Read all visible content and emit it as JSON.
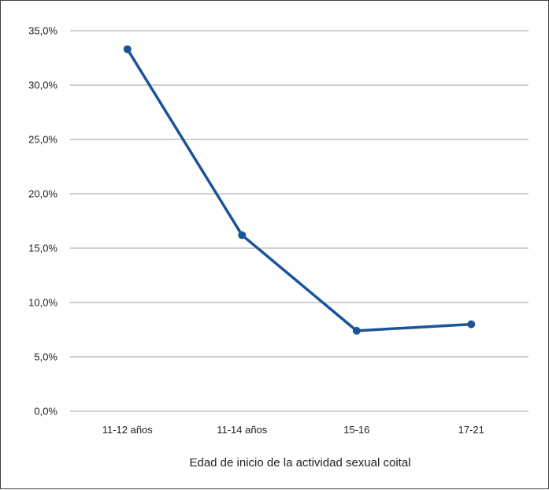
{
  "chart_data": {
    "type": "line",
    "title": "",
    "xlabel": "Edad de inicio de la actividad sexual coital",
    "ylabel": "",
    "categories": [
      "11-12 años",
      "11-14 años",
      "15-16",
      "17-21"
    ],
    "series": [
      {
        "values": [
          33.3,
          16.2,
          7.4,
          8.0
        ]
      }
    ],
    "ylim": [
      0,
      35
    ],
    "yticks": [
      0,
      5,
      10,
      15,
      20,
      25,
      30,
      35
    ],
    "ytick_labels": [
      "0,0%",
      "5,0%",
      "10,0%",
      "15,0%",
      "20,0%",
      "25,0%",
      "30,0%",
      "35,0%"
    ],
    "grid": true,
    "legend": "none",
    "colors": {
      "line": "#1a5499",
      "grid": "#b3b3b3",
      "text": "#222222"
    }
  }
}
